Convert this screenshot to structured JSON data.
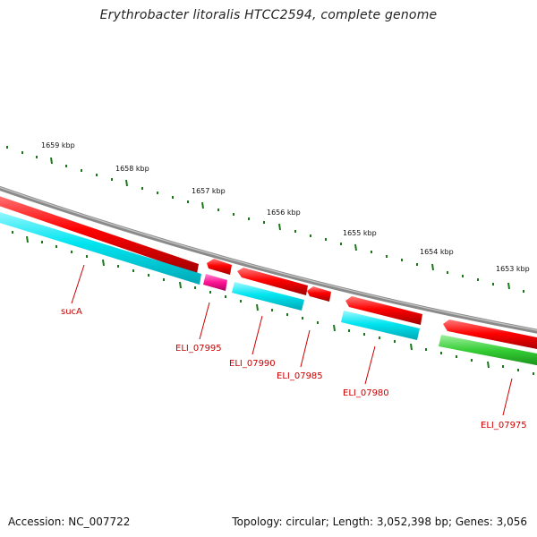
{
  "header": {
    "title": "Erythrobacter litoralis HTCC2594, complete genome"
  },
  "footer": {
    "accession": "Accession: NC_007722",
    "summary": "Topology: circular; Length: 3,052,398 bp; Genes: 3,056"
  },
  "scale": {
    "labels": [
      "1659 kbp",
      "1658 kbp",
      "1657 kbp",
      "1656 kbp",
      "1655 kbp",
      "1654 kbp",
      "1653 kbp"
    ],
    "tick_color": "#1a7a1a"
  },
  "genes": {
    "labels": [
      "sucA",
      "ELI_07995",
      "ELI_07990",
      "ELI_07985",
      "ELI_07980",
      "ELI_07975"
    ]
  },
  "colors": {
    "backbone": "#888888",
    "forward_strand": "#ff0000",
    "reverse_cds": "#00e5f0",
    "magenta_feature": "#ff1493",
    "green_feature": "#33cc33",
    "label_color": "#cc0000"
  }
}
